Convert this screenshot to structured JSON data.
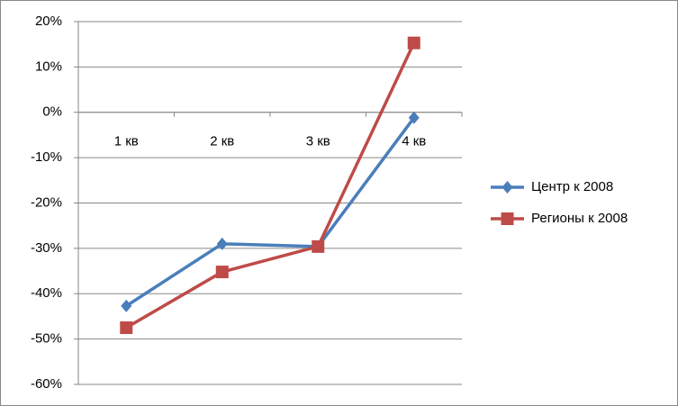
{
  "chart_data": {
    "type": "line",
    "categories": [
      "1 кв",
      "2 кв",
      "3 кв",
      "4 кв"
    ],
    "series": [
      {
        "name": "Центр к  2008",
        "color": "#4a7ebb",
        "marker": "diamond",
        "values": [
          -42.7,
          -29,
          -29.6,
          -1.2
        ]
      },
      {
        "name": "Регионы к  2008",
        "color": "#be4b48",
        "marker": "square",
        "values": [
          -47.5,
          -35.2,
          -29.6,
          15.3
        ]
      }
    ],
    "ylim": [
      -60,
      20
    ],
    "yticks": [
      {
        "value": -60,
        "label": "-60%"
      },
      {
        "value": -50,
        "label": "-50%"
      },
      {
        "value": -40,
        "label": "-40%"
      },
      {
        "value": -30,
        "label": "-30%"
      },
      {
        "value": -20,
        "label": "-20%"
      },
      {
        "value": -10,
        "label": "-10%"
      },
      {
        "value": 0,
        "label": "0%"
      },
      {
        "value": 10,
        "label": "10%"
      },
      {
        "value": 20,
        "label": "20%"
      }
    ],
    "grid": true,
    "legend": "right"
  }
}
